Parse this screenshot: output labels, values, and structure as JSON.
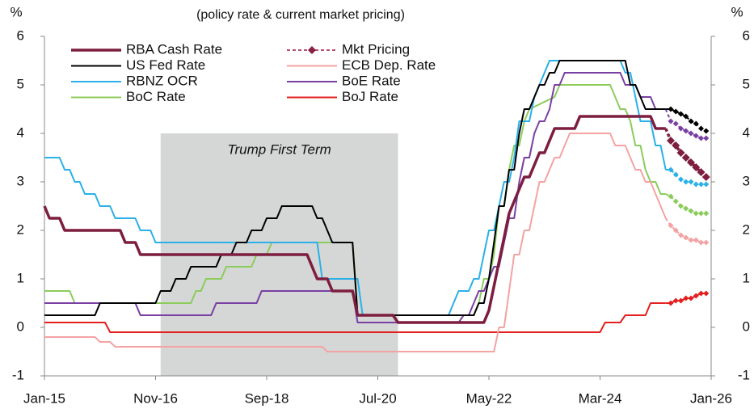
{
  "chart_data": {
    "type": "line",
    "subtitle": "(policy rate & current market pricing)",
    "y_label": "%",
    "y2_label": "%",
    "xlim": [
      "Jan-15",
      "Jan-26"
    ],
    "xticks": [
      "Jan-15",
      "Nov-16",
      "Sep-18",
      "Jul-20",
      "May-22",
      "Mar-24",
      "Jan-26"
    ],
    "ylim": [
      -1,
      6
    ],
    "yticks": [
      -1,
      0,
      1,
      2,
      3,
      4,
      5,
      6
    ],
    "shade": {
      "label": "Trump First Term",
      "from": "Dec-16",
      "to": "Nov-20",
      "color": "#d4d7d6"
    },
    "pricing": {
      "name": "Mkt Pricing",
      "color": "#b0506e",
      "marker_color": "#8a1f45"
    },
    "series": [
      {
        "name": "RBA Cash Rate",
        "color": "#7d1d3f",
        "width": 3.5,
        "x": [
          "Jan-15",
          "Feb-15",
          "Apr-15",
          "May-15",
          "Apr-16",
          "May-16",
          "Jul-16",
          "Aug-16",
          "May-19",
          "Jun-19",
          "Jul-19",
          "Sep-19",
          "Oct-19",
          "Feb-20",
          "Mar-20",
          "Oct-20",
          "Nov-20",
          "Apr-22",
          "May-22",
          "Jun-22",
          "Jul-22",
          "Aug-22",
          "Sep-22",
          "Oct-22",
          "Nov-22",
          "Dec-22",
          "Jan-23",
          "Feb-23",
          "Mar-23",
          "Apr-23",
          "May-23",
          "Jun-23",
          "Oct-23",
          "Nov-23",
          "Jan-25",
          "Feb-25",
          "Apr-25"
        ],
        "values": [
          2.5,
          2.25,
          2.25,
          2.0,
          2.0,
          1.75,
          1.75,
          1.5,
          1.5,
          1.25,
          1.0,
          1.0,
          0.75,
          0.75,
          0.25,
          0.25,
          0.1,
          0.1,
          0.35,
          0.85,
          1.35,
          1.85,
          2.35,
          2.6,
          2.85,
          3.1,
          3.1,
          3.35,
          3.6,
          3.6,
          3.85,
          4.1,
          4.1,
          4.35,
          4.35,
          4.1,
          4.1
        ],
        "pricing_x": [
          "May-25",
          "Jun-25",
          "Jul-25",
          "Aug-25",
          "Sep-25",
          "Oct-25",
          "Nov-25",
          "Dec-25"
        ],
        "pricing": [
          3.85,
          3.75,
          3.6,
          3.5,
          3.4,
          3.3,
          3.2,
          3.1
        ]
      },
      {
        "name": "US Fed Rate",
        "color": "#000000",
        "width": 2,
        "x": [
          "Jan-15",
          "Nov-15",
          "Dec-15",
          "Nov-16",
          "Dec-16",
          "Feb-17",
          "Mar-17",
          "May-17",
          "Jun-17",
          "Nov-17",
          "Dec-17",
          "Feb-18",
          "Mar-18",
          "May-18",
          "Jun-18",
          "Aug-18",
          "Sep-18",
          "Nov-18",
          "Dec-18",
          "Jun-19",
          "Jul-19",
          "Aug-19",
          "Sep-19",
          "Oct-19",
          "Feb-20",
          "Mar-20",
          "Feb-22",
          "Mar-22",
          "Apr-22",
          "May-22",
          "Jun-22",
          "Jul-22",
          "Aug-22",
          "Sep-22",
          "Oct-22",
          "Nov-22",
          "Dec-22",
          "Jan-23",
          "Feb-23",
          "Mar-23",
          "Apr-23",
          "May-23",
          "Jun-23",
          "Jul-23",
          "Aug-24",
          "Sep-24",
          "Oct-24",
          "Nov-24",
          "Dec-24",
          "Apr-25"
        ],
        "values": [
          0.25,
          0.25,
          0.5,
          0.5,
          0.75,
          0.75,
          1.0,
          1.0,
          1.25,
          1.25,
          1.5,
          1.5,
          1.75,
          1.75,
          2.0,
          2.0,
          2.25,
          2.25,
          2.5,
          2.5,
          2.25,
          2.25,
          2.0,
          1.75,
          1.75,
          0.25,
          0.25,
          0.5,
          0.5,
          1.0,
          1.75,
          2.5,
          2.5,
          3.25,
          3.25,
          4.0,
          4.5,
          4.5,
          4.75,
          5.0,
          5.0,
          5.25,
          5.25,
          5.5,
          5.5,
          5.0,
          5.0,
          4.75,
          4.5,
          4.5
        ],
        "pricing_x": [
          "May-25",
          "Jun-25",
          "Jul-25",
          "Aug-25",
          "Sep-25",
          "Oct-25",
          "Nov-25",
          "Dec-25"
        ],
        "pricing": [
          4.5,
          4.45,
          4.4,
          4.35,
          4.25,
          4.2,
          4.1,
          4.05
        ]
      },
      {
        "name": "ECB Dep. Rate",
        "color": "#f4a3a3",
        "width": 2,
        "x": [
          "Jan-15",
          "Nov-15",
          "Dec-15",
          "Feb-16",
          "Mar-16",
          "Aug-19",
          "Sep-19",
          "Jun-22",
          "Jul-22",
          "Aug-22",
          "Sep-22",
          "Oct-22",
          "Nov-22",
          "Dec-22",
          "Jan-23",
          "Feb-23",
          "Mar-23",
          "Apr-23",
          "May-23",
          "Jun-23",
          "Jul-23",
          "Aug-23",
          "Sep-23",
          "May-24",
          "Jun-24",
          "Aug-24",
          "Sep-24",
          "Oct-24",
          "Nov-24",
          "Dec-24",
          "Jan-25",
          "Feb-25",
          "Mar-25",
          "Apr-25"
        ],
        "values": [
          -0.2,
          -0.2,
          -0.3,
          -0.3,
          -0.4,
          -0.4,
          -0.5,
          -0.5,
          0.0,
          0.0,
          0.75,
          1.5,
          1.5,
          2.0,
          2.0,
          2.5,
          3.0,
          3.0,
          3.25,
          3.5,
          3.5,
          3.75,
          4.0,
          4.0,
          3.75,
          3.75,
          3.5,
          3.25,
          3.25,
          3.0,
          3.0,
          2.75,
          2.5,
          2.25
        ],
        "pricing_x": [
          "May-25",
          "Jun-25",
          "Jul-25",
          "Aug-25",
          "Sep-25",
          "Oct-25",
          "Nov-25",
          "Dec-25"
        ],
        "pricing": [
          2.1,
          2.0,
          1.9,
          1.85,
          1.8,
          1.8,
          1.75,
          1.75
        ]
      },
      {
        "name": "RBNZ OCR",
        "color": "#2bb0e8",
        "width": 2,
        "x": [
          "Jan-15",
          "Apr-15",
          "May-15",
          "Jun-15",
          "Jul-15",
          "Aug-15",
          "Sep-15",
          "Nov-15",
          "Dec-15",
          "Feb-16",
          "Mar-16",
          "Jul-16",
          "Aug-16",
          "Oct-16",
          "Nov-16",
          "Jul-19",
          "Aug-19",
          "Mar-20",
          "Apr-20",
          "Sep-21",
          "Oct-21",
          "Nov-21",
          "Jan-22",
          "Feb-22",
          "Mar-22",
          "Apr-22",
          "May-22",
          "Jun-22",
          "Jul-22",
          "Aug-22",
          "Sep-22",
          "Oct-22",
          "Nov-22",
          "Jan-23",
          "Feb-23",
          "Apr-23",
          "May-23",
          "Jul-24",
          "Aug-24",
          "Sep-24",
          "Oct-24",
          "Nov-24",
          "Jan-25",
          "Feb-25",
          "Mar-25",
          "Apr-25"
        ],
        "values": [
          3.5,
          3.5,
          3.25,
          3.25,
          3.0,
          3.0,
          2.75,
          2.75,
          2.5,
          2.5,
          2.25,
          2.25,
          2.0,
          2.0,
          1.75,
          1.75,
          1.0,
          1.0,
          0.25,
          0.25,
          0.5,
          0.75,
          0.75,
          1.0,
          1.0,
          1.5,
          2.0,
          2.0,
          2.5,
          3.0,
          3.0,
          3.5,
          4.25,
          4.25,
          4.75,
          5.25,
          5.5,
          5.5,
          5.25,
          5.25,
          4.75,
          4.25,
          4.25,
          3.75,
          3.75,
          3.25
        ],
        "pricing_x": [
          "May-25",
          "Jun-25",
          "Jul-25",
          "Aug-25",
          "Sep-25",
          "Oct-25",
          "Nov-25",
          "Dec-25"
        ],
        "pricing": [
          3.25,
          3.15,
          3.05,
          3.0,
          3.0,
          2.95,
          2.95,
          2.95
        ]
      },
      {
        "name": "BoE Rate",
        "color": "#7a3fa3",
        "width": 2,
        "x": [
          "Jan-15",
          "Jul-16",
          "Aug-16",
          "Oct-17",
          "Nov-17",
          "Jul-18",
          "Aug-18",
          "Feb-20",
          "Mar-20",
          "Nov-21",
          "Dec-21",
          "Jan-22",
          "Feb-22",
          "Mar-22",
          "Apr-22",
          "May-22",
          "Jun-22",
          "Jul-22",
          "Aug-22",
          "Sep-22",
          "Oct-22",
          "Nov-22",
          "Dec-22",
          "Jan-23",
          "Feb-23",
          "Mar-23",
          "Apr-23",
          "May-23",
          "Jun-23",
          "Jul-23",
          "Aug-23",
          "Jul-24",
          "Aug-24",
          "Oct-24",
          "Nov-24",
          "Jan-25",
          "Feb-25",
          "Apr-25"
        ],
        "values": [
          0.5,
          0.5,
          0.25,
          0.25,
          0.5,
          0.5,
          0.75,
          0.75,
          0.1,
          0.1,
          0.25,
          0.25,
          0.5,
          0.75,
          0.75,
          1.0,
          1.25,
          1.25,
          1.75,
          2.25,
          2.25,
          3.0,
          3.5,
          3.5,
          4.0,
          4.25,
          4.25,
          4.5,
          5.0,
          5.0,
          5.25,
          5.25,
          5.0,
          5.0,
          4.75,
          4.75,
          4.5,
          4.5
        ],
        "pricing_x": [
          "May-25",
          "Jun-25",
          "Jul-25",
          "Aug-25",
          "Sep-25",
          "Oct-25",
          "Nov-25",
          "Dec-25"
        ],
        "pricing": [
          4.25,
          4.2,
          4.1,
          4.05,
          4.0,
          3.95,
          3.9,
          3.9
        ]
      },
      {
        "name": "BoC Rate",
        "color": "#8ccc5c",
        "width": 2,
        "x": [
          "Jan-15",
          "Jun-15",
          "Jul-15",
          "Jun-17",
          "Jul-17",
          "Aug-17",
          "Sep-17",
          "Dec-17",
          "Jan-18",
          "Jun-18",
          "Jul-18",
          "Sep-18",
          "Oct-18",
          "Feb-20",
          "Mar-20",
          "Feb-22",
          "Mar-22",
          "Apr-22",
          "May-22",
          "Jun-22",
          "Jul-22",
          "Aug-22",
          "Sep-22",
          "Oct-22",
          "Nov-22",
          "Dec-22",
          "Jan-23",
          "Jun-23",
          "Jul-23",
          "May-24",
          "Jun-24",
          "Jul-24",
          "Aug-24",
          "Sep-24",
          "Oct-24",
          "Nov-24",
          "Dec-24",
          "Jan-25",
          "Feb-25",
          "Mar-25",
          "Apr-25"
        ],
        "values": [
          0.75,
          0.75,
          0.5,
          0.5,
          0.75,
          0.75,
          1.0,
          1.0,
          1.25,
          1.25,
          1.5,
          1.5,
          1.75,
          1.75,
          0.25,
          0.25,
          0.5,
          1.0,
          1.0,
          1.5,
          2.5,
          2.5,
          3.25,
          3.75,
          3.75,
          4.25,
          4.5,
          4.75,
          5.0,
          5.0,
          4.75,
          4.5,
          4.5,
          4.25,
          3.75,
          3.75,
          3.25,
          3.0,
          3.0,
          2.75,
          2.75
        ],
        "pricing_x": [
          "May-25",
          "Jun-25",
          "Jul-25",
          "Aug-25",
          "Sep-25",
          "Oct-25",
          "Nov-25",
          "Dec-25"
        ],
        "pricing": [
          2.7,
          2.6,
          2.5,
          2.45,
          2.4,
          2.35,
          2.35,
          2.35
        ]
      },
      {
        "name": "BoJ Rate",
        "color": "#e3201f",
        "width": 2,
        "x": [
          "Jan-15",
          "Jan-16",
          "Feb-16",
          "Mar-24",
          "Apr-24",
          "Jul-24",
          "Aug-24",
          "Dec-24",
          "Jan-25",
          "Apr-25"
        ],
        "values": [
          0.1,
          0.1,
          -0.1,
          -0.1,
          0.1,
          0.1,
          0.25,
          0.25,
          0.5,
          0.5
        ],
        "pricing_x": [
          "May-25",
          "Jun-25",
          "Jul-25",
          "Aug-25",
          "Sep-25",
          "Oct-25",
          "Nov-25",
          "Dec-25"
        ],
        "pricing": [
          0.5,
          0.55,
          0.55,
          0.6,
          0.6,
          0.65,
          0.7,
          0.7
        ]
      }
    ]
  }
}
